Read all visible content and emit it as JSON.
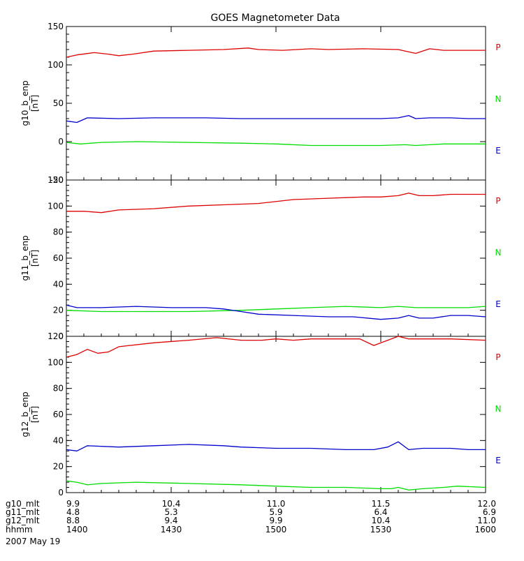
{
  "chart_data": {
    "type": "line",
    "title": "GOES Magnetometer Data",
    "date_label": "2007 May 19",
    "legend": [
      {
        "label": "P",
        "color": "#dd0000"
      },
      {
        "label": "N",
        "color": "#00dd00"
      },
      {
        "label": "E",
        "color": "#0000cc"
      }
    ],
    "x": {
      "label_rows": [
        {
          "label": "g10_mlt",
          "values": [
            "9.9",
            "10.4",
            "11.0",
            "11.5",
            "12.0"
          ]
        },
        {
          "label": "g11_mlt",
          "values": [
            "4.8",
            "5.3",
            "5.9",
            "6.4",
            "6.9"
          ]
        },
        {
          "label": "g12_mlt",
          "values": [
            "8.8",
            "9.4",
            "9.9",
            "10.4",
            "11.0"
          ]
        },
        {
          "label": "hhmm",
          "values": [
            "1400",
            "1430",
            "1500",
            "1530",
            "1600"
          ]
        }
      ],
      "tick_minutes": [
        0,
        30,
        60,
        90,
        120
      ],
      "range_minutes": [
        0,
        120
      ]
    },
    "panels": [
      {
        "ylabel": "g10_b_enp",
        "yunit": "[nT]",
        "ylim": [
          -50,
          150
        ],
        "yticks": [
          -50,
          0,
          50,
          100,
          150
        ],
        "series": [
          {
            "name": "P",
            "color": "#dd0000",
            "points": [
              [
                0,
                110
              ],
              [
                3,
                113
              ],
              [
                8,
                116
              ],
              [
                12,
                114
              ],
              [
                15,
                112
              ],
              [
                19,
                114
              ],
              [
                25,
                118
              ],
              [
                35,
                119
              ],
              [
                45,
                120
              ],
              [
                52,
                122
              ],
              [
                55,
                120
              ],
              [
                62,
                119
              ],
              [
                70,
                121
              ],
              [
                75,
                120
              ],
              [
                85,
                121
              ],
              [
                95,
                120
              ],
              [
                100,
                115
              ],
              [
                104,
                121
              ],
              [
                108,
                119
              ],
              [
                113,
                119
              ],
              [
                120,
                119
              ]
            ]
          },
          {
            "name": "N",
            "color": "#00dd00",
            "points": [
              [
                0,
                -1
              ],
              [
                4,
                -3
              ],
              [
                10,
                -1
              ],
              [
                20,
                0
              ],
              [
                35,
                -1
              ],
              [
                50,
                -2
              ],
              [
                60,
                -3
              ],
              [
                70,
                -5
              ],
              [
                80,
                -5
              ],
              [
                90,
                -5
              ],
              [
                97,
                -4
              ],
              [
                100,
                -5
              ],
              [
                104,
                -4
              ],
              [
                108,
                -3
              ],
              [
                113,
                -3
              ],
              [
                120,
                -3
              ]
            ]
          },
          {
            "name": "E",
            "color": "#0000cc",
            "points": [
              [
                0,
                27
              ],
              [
                3,
                25
              ],
              [
                6,
                31
              ],
              [
                15,
                30
              ],
              [
                25,
                31
              ],
              [
                40,
                31
              ],
              [
                50,
                30
              ],
              [
                60,
                30
              ],
              [
                75,
                30
              ],
              [
                90,
                30
              ],
              [
                95,
                31
              ],
              [
                98,
                34
              ],
              [
                100,
                30
              ],
              [
                104,
                31
              ],
              [
                110,
                31
              ],
              [
                115,
                30
              ],
              [
                120,
                30
              ]
            ]
          }
        ]
      },
      {
        "ylabel": "g11_b_enp",
        "yunit": "[nT]",
        "ylim": [
          0,
          120
        ],
        "yticks": [
          0,
          20,
          40,
          60,
          80,
          100,
          120
        ],
        "series": [
          {
            "name": "P",
            "color": "#dd0000",
            "points": [
              [
                0,
                96
              ],
              [
                5,
                96
              ],
              [
                10,
                95
              ],
              [
                15,
                97
              ],
              [
                25,
                98
              ],
              [
                35,
                100
              ],
              [
                45,
                101
              ],
              [
                55,
                102
              ],
              [
                65,
                105
              ],
              [
                75,
                106
              ],
              [
                85,
                107
              ],
              [
                90,
                107
              ],
              [
                95,
                108
              ],
              [
                98,
                110
              ],
              [
                101,
                108
              ],
              [
                105,
                108
              ],
              [
                110,
                109
              ],
              [
                115,
                109
              ],
              [
                120,
                109
              ]
            ]
          },
          {
            "name": "N",
            "color": "#00dd00",
            "points": [
              [
                0,
                20
              ],
              [
                10,
                19
              ],
              [
                20,
                19
              ],
              [
                35,
                19
              ],
              [
                50,
                20
              ],
              [
                60,
                21
              ],
              [
                70,
                22
              ],
              [
                80,
                23
              ],
              [
                90,
                22
              ],
              [
                95,
                23
              ],
              [
                100,
                22
              ],
              [
                110,
                22
              ],
              [
                115,
                22
              ],
              [
                120,
                23
              ]
            ]
          },
          {
            "name": "E",
            "color": "#0000cc",
            "points": [
              [
                0,
                24
              ],
              [
                3,
                22
              ],
              [
                10,
                22
              ],
              [
                20,
                23
              ],
              [
                30,
                22
              ],
              [
                40,
                22
              ],
              [
                45,
                21
              ],
              [
                50,
                19
              ],
              [
                55,
                17
              ],
              [
                65,
                16
              ],
              [
                75,
                15
              ],
              [
                82,
                15
              ],
              [
                90,
                13
              ],
              [
                95,
                14
              ],
              [
                98,
                16
              ],
              [
                101,
                14
              ],
              [
                105,
                14
              ],
              [
                110,
                16
              ],
              [
                115,
                16
              ],
              [
                120,
                15
              ]
            ]
          }
        ]
      },
      {
        "ylabel": "g12_b_enp",
        "yunit": "[nT]",
        "ylim": [
          0,
          120
        ],
        "yticks": [
          0,
          20,
          40,
          60,
          80,
          100,
          120
        ],
        "series": [
          {
            "name": "P",
            "color": "#dd0000",
            "points": [
              [
                0,
                104
              ],
              [
                3,
                106
              ],
              [
                6,
                110
              ],
              [
                9,
                107
              ],
              [
                12,
                108
              ],
              [
                15,
                112
              ],
              [
                25,
                115
              ],
              [
                35,
                117
              ],
              [
                43,
                119
              ],
              [
                50,
                117
              ],
              [
                56,
                117
              ],
              [
                60,
                118
              ],
              [
                65,
                117
              ],
              [
                70,
                118
              ],
              [
                80,
                118
              ],
              [
                84,
                118
              ],
              [
                88,
                113
              ],
              [
                92,
                117
              ],
              [
                95,
                120
              ],
              [
                98,
                118
              ],
              [
                102,
                118
              ],
              [
                110,
                118
              ],
              [
                120,
                117
              ]
            ]
          },
          {
            "name": "N",
            "color": "#00dd00",
            "points": [
              [
                0,
                9
              ],
              [
                3,
                8
              ],
              [
                6,
                6
              ],
              [
                10,
                7
              ],
              [
                20,
                8
              ],
              [
                35,
                7
              ],
              [
                50,
                6
              ],
              [
                60,
                5
              ],
              [
                70,
                4
              ],
              [
                80,
                4
              ],
              [
                90,
                3
              ],
              [
                93,
                3
              ],
              [
                95,
                4
              ],
              [
                98,
                2
              ],
              [
                102,
                3
              ],
              [
                108,
                4
              ],
              [
                112,
                5
              ],
              [
                120,
                4
              ]
            ]
          },
          {
            "name": "E",
            "color": "#0000cc",
            "points": [
              [
                0,
                33
              ],
              [
                3,
                32
              ],
              [
                6,
                36
              ],
              [
                15,
                35
              ],
              [
                25,
                36
              ],
              [
                35,
                37
              ],
              [
                45,
                36
              ],
              [
                50,
                35
              ],
              [
                60,
                34
              ],
              [
                70,
                34
              ],
              [
                80,
                33
              ],
              [
                88,
                33
              ],
              [
                92,
                35
              ],
              [
                95,
                39
              ],
              [
                98,
                33
              ],
              [
                102,
                34
              ],
              [
                110,
                34
              ],
              [
                115,
                33
              ],
              [
                120,
                33
              ]
            ]
          }
        ]
      }
    ]
  }
}
